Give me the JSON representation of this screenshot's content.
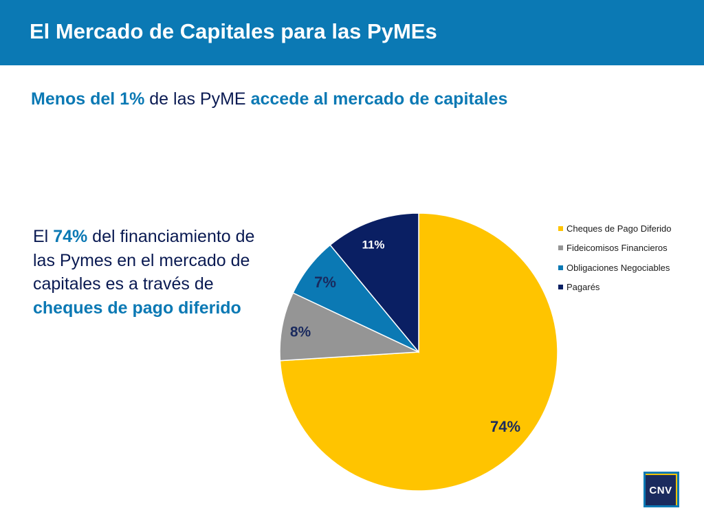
{
  "header": {
    "title": "El Mercado de Capitales para las PyMEs"
  },
  "subtitle": {
    "part1": "Menos del 1%",
    "part2": " de las PyME ",
    "part3": "accede al mercado de capitales"
  },
  "description": {
    "part1": "El ",
    "part2": "74%",
    "part3": " del financiamiento de las Pymes en el mercado de capitales es a través de ",
    "part4": "cheques de pago diferido"
  },
  "logo": {
    "text": "CNV"
  },
  "colors": {
    "header": "#0b79b4",
    "accent": "#0b79b4",
    "dark_text": "#0a1a52"
  },
  "chart_data": {
    "type": "pie",
    "title": "",
    "start_angle_deg": 0,
    "direction": "clockwise",
    "legend_position": "right",
    "categories": [
      "Cheques de Pago Diferido",
      "Fideicomisos Financieros",
      "Obligaciones Negociables",
      "Pagarés"
    ],
    "values": [
      74,
      8,
      7,
      11
    ],
    "labels": [
      "74%",
      "8%",
      "7%",
      "11%"
    ],
    "colors": [
      "#ffc400",
      "#959595",
      "#0b79b4",
      "#0a1f63"
    ],
    "label_colors": [
      "#1a2a5e",
      "#1a2a5e",
      "#1a2a5e",
      "#ffffff"
    ]
  }
}
